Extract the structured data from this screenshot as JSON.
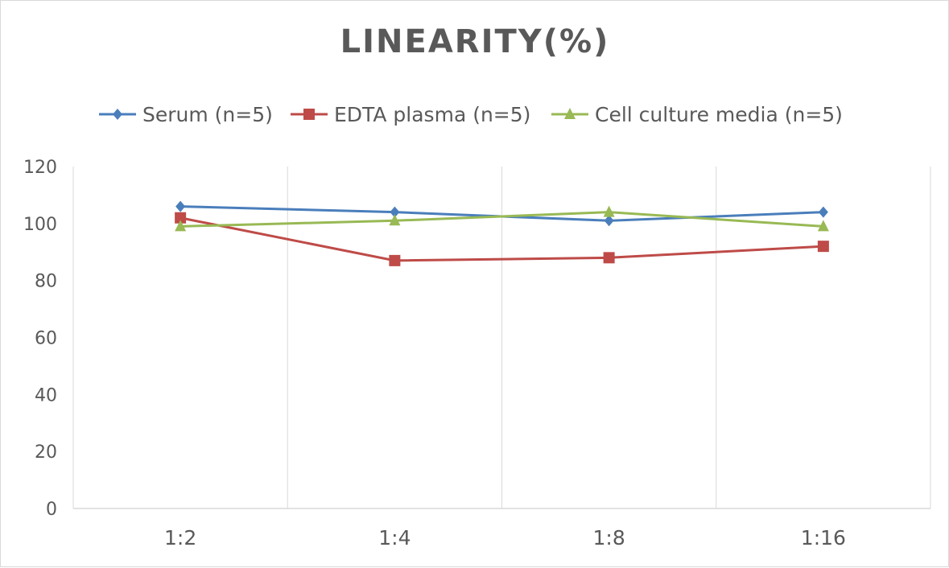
{
  "chart_data": {
    "type": "line",
    "title": "LINEARITY(%)",
    "categories": [
      "1:2",
      "1:4",
      "1:8",
      "1:16"
    ],
    "ylim": [
      0,
      120
    ],
    "yticks": [
      0,
      20,
      40,
      60,
      80,
      100,
      120
    ],
    "grid": "vertical",
    "legend_position": "top",
    "series": [
      {
        "name": "Serum (n=5)",
        "values": [
          106,
          104,
          101,
          104
        ],
        "color": "#4a7ebb",
        "marker": "diamond"
      },
      {
        "name": "EDTA plasma (n=5)",
        "values": [
          102,
          87,
          88,
          92
        ],
        "color": "#be4b48",
        "marker": "square"
      },
      {
        "name": "Cell culture media (n=5)",
        "values": [
          99,
          101,
          104,
          99
        ],
        "color": "#98b954",
        "marker": "triangle"
      }
    ]
  }
}
